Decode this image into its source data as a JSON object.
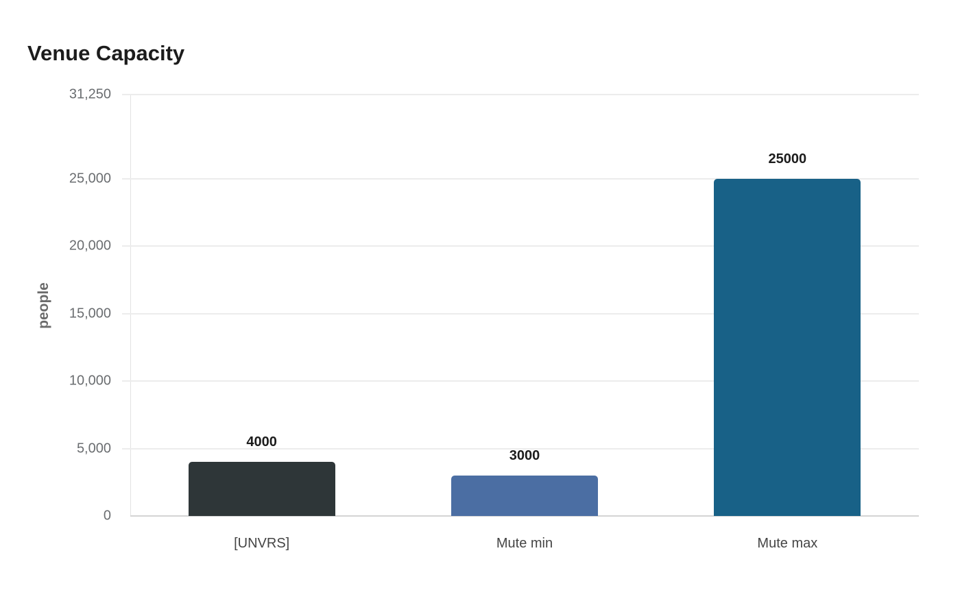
{
  "chart_data": {
    "type": "bar",
    "title": "Venue Capacity",
    "xlabel": "",
    "ylabel": "people",
    "categories": [
      "[UNVRS]",
      "Mute min",
      "Mute max"
    ],
    "values": [
      4000,
      3000,
      25000
    ],
    "value_labels": [
      "4000",
      "3000",
      "25000"
    ],
    "colors": [
      "#2e3638",
      "#4b6ea3",
      "#186187"
    ],
    "ylim": [
      0,
      31250
    ],
    "yticks": [
      0,
      5000,
      10000,
      15000,
      20000,
      25000,
      31250
    ],
    "ytick_labels": [
      "0",
      "5,000",
      "10,000",
      "15,000",
      "20,000",
      "25,000",
      "31,250"
    ],
    "grid": true,
    "legend": false
  }
}
